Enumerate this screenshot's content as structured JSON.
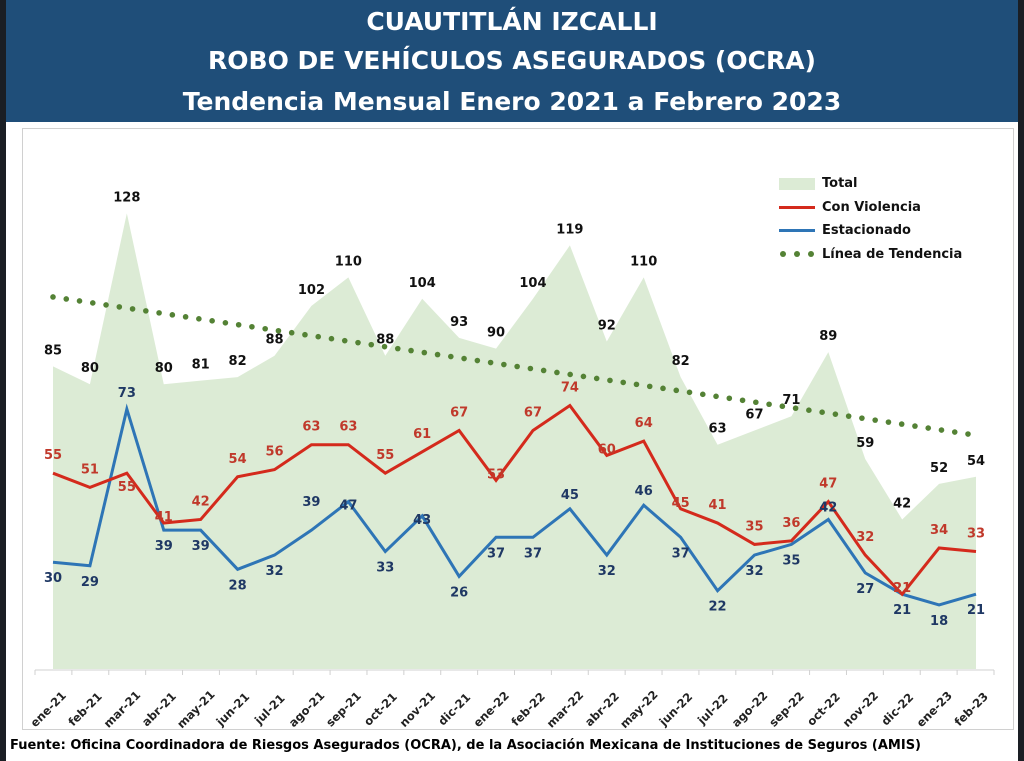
{
  "header": {
    "line1": "CUAUTITLÁN IZCALLI",
    "line2": "ROBO DE VEHÍCULOS ASEGURADOS (OCRA)",
    "line3": "Tendencia Mensual Enero 2021 a Febrero 2023"
  },
  "source": "Fuente: Oficina Coordinadora de Riesgos Asegurados (OCRA), de la Asociación Mexicana de Instituciones de Seguros (AMIS)",
  "legend": {
    "total": "Total",
    "violencia": "Con Violencia",
    "estacionado": "Estacionado",
    "tendencia": "Línea de Tendencia"
  },
  "colors": {
    "header_bg": "#1f4e79",
    "total_area": "#dcebd5",
    "violencia": "#d42a1c",
    "estacionado": "#2e75b6",
    "tendencia": "#548235",
    "violencia_label": "#c0392b",
    "estacionado_label": "#1f3864"
  },
  "chart_data": {
    "type": "line",
    "title": "CUAUTITLÁN IZCALLI — ROBO DE VEHÍCULOS ASEGURADOS (OCRA) — Tendencia Mensual Enero 2021 a Febrero 2023",
    "xlabel": "",
    "ylabel": "",
    "ylim": [
      0,
      130
    ],
    "grid": false,
    "legend_position": "top-right",
    "categories": [
      "ene-21",
      "feb-21",
      "mar-21",
      "abr-21",
      "may-21",
      "jun-21",
      "jul-21",
      "ago-21",
      "sep-21",
      "oct-21",
      "nov-21",
      "dic-21",
      "ene-22",
      "feb-22",
      "mar-22",
      "abr-22",
      "may-22",
      "jun-22",
      "jul-22",
      "ago-22",
      "sep-22",
      "oct-22",
      "nov-22",
      "dic-22",
      "ene-23",
      "feb-23"
    ],
    "series": [
      {
        "name": "Total",
        "kind": "area",
        "values": [
          85,
          80,
          128,
          80,
          81,
          82,
          88,
          102,
          110,
          88,
          104,
          93,
          90,
          104,
          119,
          92,
          110,
          82,
          63,
          67,
          71,
          89,
          59,
          42,
          52,
          54
        ]
      },
      {
        "name": "Con Violencia",
        "kind": "line",
        "values": [
          55,
          51,
          55,
          41,
          42,
          54,
          56,
          63,
          63,
          55,
          61,
          67,
          53,
          67,
          74,
          60,
          64,
          45,
          41,
          35,
          36,
          47,
          32,
          21,
          34,
          33
        ]
      },
      {
        "name": "Estacionado",
        "kind": "line",
        "values": [
          30,
          29,
          73,
          39,
          39,
          28,
          32,
          39,
          47,
          33,
          43,
          26,
          37,
          37,
          45,
          32,
          46,
          37,
          22,
          32,
          35,
          42,
          27,
          21,
          18,
          21
        ]
      },
      {
        "name": "Línea de Tendencia",
        "kind": "trend",
        "start": 104.5,
        "end": 66
      }
    ]
  }
}
